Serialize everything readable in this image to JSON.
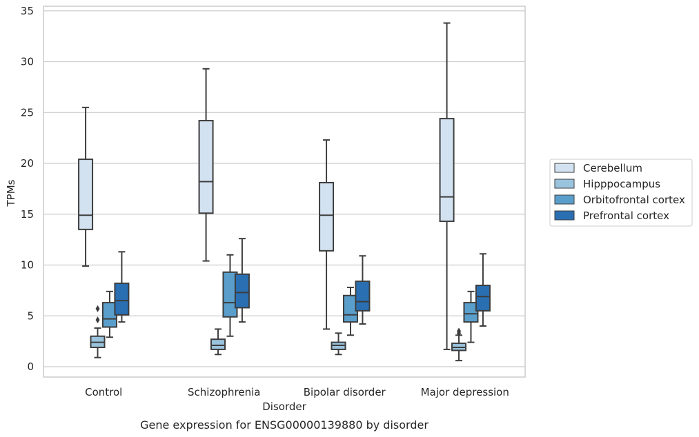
{
  "chart_data": {
    "type": "box",
    "caption": "Gene expression for ENSG00000139880 by disorder",
    "xlabel": "Disorder",
    "ylabel": "TPMs",
    "ylim": [
      -1,
      35.5
    ],
    "yticks": [
      0,
      5,
      10,
      15,
      20,
      25,
      30,
      35
    ],
    "grid": "horizontal",
    "legend_position": "right",
    "categories": [
      "Control",
      "Schizophrenia",
      "Bipolar disorder",
      "Major depression"
    ],
    "series": [
      {
        "name": "Cerebellum",
        "color": "#d3e2f1",
        "boxes": [
          {
            "whisker_low": 9.9,
            "q1": 13.5,
            "median": 14.9,
            "q3": 20.4,
            "whisker_high": 25.5,
            "outliers": []
          },
          {
            "whisker_low": 10.4,
            "q1": 15.1,
            "median": 18.2,
            "q3": 24.2,
            "whisker_high": 29.3,
            "outliers": []
          },
          {
            "whisker_low": 3.7,
            "q1": 11.4,
            "median": 14.9,
            "q3": 18.1,
            "whisker_high": 22.3,
            "outliers": []
          },
          {
            "whisker_low": 1.7,
            "q1": 14.3,
            "median": 16.7,
            "q3": 24.4,
            "whisker_high": 33.8,
            "outliers": []
          }
        ]
      },
      {
        "name": "Hipppocampus",
        "color": "#9ac3de",
        "boxes": [
          {
            "whisker_low": 0.9,
            "q1": 1.9,
            "median": 2.4,
            "q3": 3.0,
            "whisker_high": 3.8,
            "outliers": [
              4.6,
              5.7
            ]
          },
          {
            "whisker_low": 1.2,
            "q1": 1.7,
            "median": 2.1,
            "q3": 2.7,
            "whisker_high": 3.7,
            "outliers": []
          },
          {
            "whisker_low": 1.2,
            "q1": 1.7,
            "median": 2.1,
            "q3": 2.4,
            "whisker_high": 3.3,
            "outliers": []
          },
          {
            "whisker_low": 0.6,
            "q1": 1.6,
            "median": 1.9,
            "q3": 2.3,
            "whisker_high": 3.1,
            "outliers": [
              3.3,
              3.5
            ]
          }
        ]
      },
      {
        "name": "Orbitofrontal cortex",
        "color": "#5a9fcc",
        "boxes": [
          {
            "whisker_low": 2.9,
            "q1": 3.9,
            "median": 4.7,
            "q3": 6.3,
            "whisker_high": 7.4,
            "outliers": []
          },
          {
            "whisker_low": 3.0,
            "q1": 4.9,
            "median": 6.3,
            "q3": 9.3,
            "whisker_high": 11.0,
            "outliers": []
          },
          {
            "whisker_low": 3.1,
            "q1": 4.4,
            "median": 5.1,
            "q3": 7.0,
            "whisker_high": 7.8,
            "outliers": []
          },
          {
            "whisker_low": 2.4,
            "q1": 4.4,
            "median": 5.2,
            "q3": 6.3,
            "whisker_high": 7.4,
            "outliers": []
          }
        ]
      },
      {
        "name": "Prefrontal cortex",
        "color": "#2a6fb2",
        "boxes": [
          {
            "whisker_low": 4.4,
            "q1": 5.1,
            "median": 6.5,
            "q3": 8.2,
            "whisker_high": 11.3,
            "outliers": []
          },
          {
            "whisker_low": 4.4,
            "q1": 5.8,
            "median": 7.3,
            "q3": 9.1,
            "whisker_high": 12.6,
            "outliers": []
          },
          {
            "whisker_low": 4.2,
            "q1": 5.5,
            "median": 6.4,
            "q3": 8.4,
            "whisker_high": 10.9,
            "outliers": []
          },
          {
            "whisker_low": 4.0,
            "q1": 5.5,
            "median": 6.9,
            "q3": 8.0,
            "whisker_high": 11.1,
            "outliers": []
          }
        ]
      }
    ]
  },
  "colors": {
    "grid": "#cccccc",
    "frame": "#cccccc",
    "box_edge": "#3d3d3d",
    "text": "#262626"
  }
}
